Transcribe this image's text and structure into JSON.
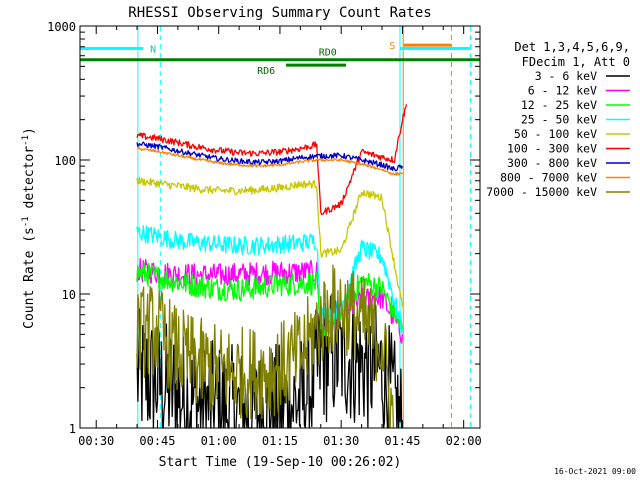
{
  "chart_data": {
    "type": "line",
    "title": "RHESSI Observing Summary Count Rates",
    "xlabel": "Start Time (19-Sep-10 00:26:02)",
    "ylabel": "Count Rate (s^-1 detector^-1)",
    "ylabel_main": "Count Rate (s",
    "ylabel_sup1": "-1",
    "ylabel_mid": " detector",
    "ylabel_sup2": "-1",
    "ylabel_end": ")",
    "x_units": "minutes",
    "xlim": [
      26.03,
      124
    ],
    "ylim": [
      1,
      1000
    ],
    "yscale": "log",
    "x_ticks": [
      {
        "value": 30,
        "label": "00:30"
      },
      {
        "value": 45,
        "label": "00:45"
      },
      {
        "value": 60,
        "label": "01:00"
      },
      {
        "value": 75,
        "label": "01:15"
      },
      {
        "value": 90,
        "label": "01:30"
      },
      {
        "value": 105,
        "label": "01:45"
      },
      {
        "value": 120,
        "label": "02:00"
      }
    ],
    "y_ticks": [
      {
        "value": 1,
        "label": "1"
      },
      {
        "value": 10,
        "label": "10"
      },
      {
        "value": 100,
        "label": "100"
      },
      {
        "value": 1000,
        "label": "1000"
      }
    ],
    "legend_header": [
      "Det 1,3,4,5,6,9,",
      "FDecim 1, Att 0"
    ],
    "legend_position": "right",
    "series": [
      {
        "name": "3 - 6 keV",
        "color": "#000000",
        "x": [
          40,
          43,
          46,
          50,
          55,
          60,
          65,
          70,
          75,
          80,
          84,
          85,
          87,
          90,
          95,
          100,
          105
        ],
        "y": [
          2.5,
          2.3,
          2.1,
          1.8,
          1.5,
          1.4,
          1.3,
          1.3,
          1.4,
          1.6,
          2.5,
          3.2,
          3.4,
          3.5,
          3.0,
          2.7,
          1.0
        ],
        "noise": 0.5
      },
      {
        "name": "6 - 12 keV",
        "color": "#ff00ff",
        "x": [
          40,
          45,
          50,
          55,
          60,
          65,
          70,
          75,
          80,
          84,
          85,
          90,
          95,
          100,
          105
        ],
        "y": [
          15,
          14.5,
          14,
          13.8,
          13.8,
          14,
          14.2,
          14.5,
          14.5,
          14.5,
          5.8,
          7,
          9,
          9.5,
          5
        ],
        "noise": 0.09
      },
      {
        "name": "12 - 25 keV",
        "color": "#00ff00",
        "x": [
          40,
          45,
          50,
          55,
          60,
          65,
          70,
          75,
          80,
          84,
          85,
          90,
          95,
          100,
          105
        ],
        "y": [
          14.5,
          13.5,
          12.3,
          11.5,
          11,
          10.8,
          11.2,
          11.8,
          12,
          12,
          5,
          7.5,
          12.5,
          11,
          5.5
        ],
        "noise": 0.09
      },
      {
        "name": "25 - 50 keV",
        "color": "#00ffff",
        "x": [
          40,
          45,
          50,
          55,
          60,
          65,
          70,
          75,
          80,
          84,
          85,
          90,
          95,
          100,
          105
        ],
        "y": [
          29,
          27,
          25,
          24,
          23.5,
          23,
          23,
          23.5,
          24,
          25,
          7,
          8,
          22,
          19,
          5.5
        ],
        "noise": 0.07
      },
      {
        "name": "50 - 100 keV",
        "color": "#c8c800",
        "x": [
          40,
          45,
          50,
          55,
          60,
          65,
          70,
          75,
          80,
          84,
          85,
          90,
          95,
          100,
          105
        ],
        "y": [
          70,
          67,
          64,
          61,
          59,
          59,
          60,
          62,
          66,
          66,
          20,
          21,
          58,
          52,
          8
        ],
        "noise": 0.03
      },
      {
        "name": "100 - 300 keV",
        "color": "#ff0000",
        "x": [
          40,
          45,
          50,
          55,
          60,
          65,
          70,
          75,
          80,
          84,
          85,
          88,
          90,
          95,
          100,
          103,
          105,
          106
        ],
        "y": [
          152,
          145,
          135,
          125,
          118,
          113,
          112,
          115,
          122,
          130,
          40,
          44,
          47,
          115,
          105,
          100,
          200,
          260
        ],
        "noise": 0.025
      },
      {
        "name": "300 - 800 keV",
        "color": "#0000c8",
        "x": [
          40,
          45,
          50,
          55,
          60,
          65,
          70,
          75,
          80,
          84,
          85,
          90,
          95,
          100,
          103,
          105
        ],
        "y": [
          132,
          126,
          117,
          109,
          102,
          98,
          96,
          98,
          104,
          107,
          107,
          108,
          100,
          92,
          85,
          90
        ],
        "noise": 0.02
      },
      {
        "name": "800 - 7000 keV",
        "color": "#ff8000",
        "x": [
          40,
          45,
          50,
          55,
          60,
          65,
          70,
          75,
          80,
          84,
          85,
          90,
          95,
          100,
          103,
          105
        ],
        "y": [
          122,
          116,
          108,
          101,
          95,
          92,
          90,
          92,
          97,
          100,
          100,
          100,
          93,
          85,
          78,
          80
        ],
        "noise": 0.01
      },
      {
        "name": "7000 - 15000 keV",
        "color": "#808000",
        "x": [
          40,
          43,
          46,
          50,
          55,
          60,
          65,
          70,
          75,
          80,
          84,
          87,
          90,
          93,
          96,
          100,
          103
        ],
        "y": [
          5,
          5.5,
          5,
          3.6,
          3.0,
          2.7,
          2.6,
          2.6,
          2.8,
          3.5,
          5.5,
          7.5,
          8,
          7.2,
          5.8,
          4.5,
          1.0
        ],
        "noise": 0.35
      }
    ],
    "state_bars": [
      {
        "label": "N",
        "color": "#00ffff",
        "y": 680,
        "segments": [
          [
            26.03,
            41.5
          ],
          [
            104.4,
            121.7
          ]
        ]
      },
      {
        "label": "S",
        "color": "#ff8000",
        "y": 720,
        "segments": [
          [
            105.2,
            117.0
          ]
        ]
      },
      {
        "label": "RD0",
        "color": "#008000",
        "y": 560,
        "segments": [
          [
            26.03,
            124
          ]
        ]
      },
      {
        "label": "RD6",
        "color": "#008000",
        "y": 510,
        "segments": [
          [
            76.5,
            91.2
          ]
        ]
      }
    ],
    "state_labels": {
      "N": "N",
      "S": "S",
      "RD0": "RD0",
      "RD6": "RD6"
    },
    "vertical_markers": [
      {
        "color": "#00ffff",
        "style": "solid",
        "x": 40.2
      },
      {
        "color": "#00ffff",
        "style": "dashed",
        "x": 45.7
      },
      {
        "color": "#00ffff",
        "style": "solid",
        "x": 104.4
      },
      {
        "color": "#00ffff",
        "style": "dashed",
        "x": 121.7
      },
      {
        "color": "#ff8000",
        "style": "solid",
        "x": 105.2
      },
      {
        "color": "#ff8000",
        "style": "dashed",
        "x": 117.0
      }
    ],
    "footer": "16-Oct-2021 09:00"
  }
}
